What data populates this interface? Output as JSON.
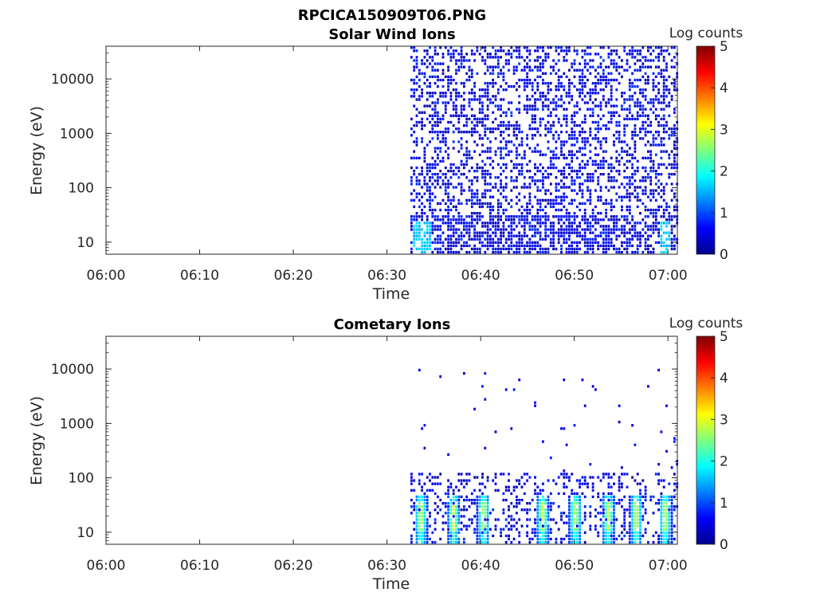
{
  "figure": {
    "title": "RPCICA150909T06.PNG"
  },
  "chart_data": [
    {
      "type": "heatmap",
      "title": "Solar Wind Ions",
      "xlabel": "Time",
      "ylabel": "Energy (eV)",
      "x_ticks": [
        "06:00",
        "06:10",
        "06:20",
        "06:30",
        "06:40",
        "06:50",
        "07:00"
      ],
      "y_ticks": [
        "10",
        "100",
        "1000",
        "10000"
      ],
      "y_scale": "log",
      "ylim": [
        6,
        40000
      ],
      "xlim": [
        "06:00",
        "07:01"
      ],
      "colorbar": {
        "label": "Log counts",
        "ticks": [
          "0",
          "1",
          "2",
          "3",
          "4",
          "5"
        ],
        "range": [
          0,
          5
        ],
        "colormap": "jet"
      },
      "data_start": "06:32:30",
      "background": "#ffffff",
      "pattern": "sparse low counts (log 0-1) across all energies after 06:32; slightly higher (log ~1.5) near 10-20 eV at 06:33 and 06:59"
    },
    {
      "type": "heatmap",
      "title": "Cometary Ions",
      "xlabel": "Time",
      "ylabel": "Energy (eV)",
      "x_ticks": [
        "06:00",
        "06:10",
        "06:20",
        "06:30",
        "06:40",
        "06:50",
        "07:00"
      ],
      "y_ticks": [
        "10",
        "100",
        "1000",
        "10000"
      ],
      "y_scale": "log",
      "ylim": [
        6,
        40000
      ],
      "xlim": [
        "06:00",
        "07:01"
      ],
      "colorbar": {
        "label": "Log counts",
        "ticks": [
          "0",
          "1",
          "2",
          "3",
          "4",
          "5"
        ],
        "range": [
          0,
          5
        ],
        "colormap": "jet"
      },
      "data_start": "06:32:30",
      "background": "#ffffff",
      "pattern": "counts concentrated below ~120 eV; periodic bursts (log ~2-3) near 15-30 eV at about 06:33, 06:37, 06:40, 06:46, 06:50, 06:54, 06:57, 06:59; sparse points up to ~9000 eV"
    }
  ]
}
